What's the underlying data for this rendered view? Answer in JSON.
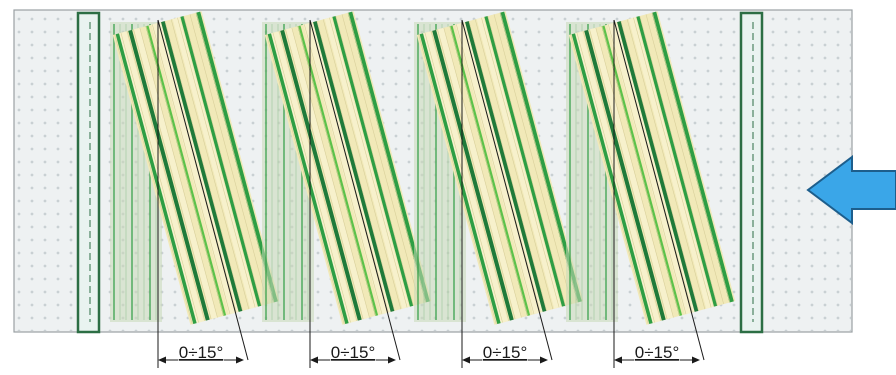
{
  "diagram": {
    "panel": {
      "fill": "#eef1f2",
      "border": "#9aa0a3",
      "dot_color": "#c9d0d3"
    },
    "batten_colors": {
      "fill": "#e9f3f0",
      "border": "#2c6e44"
    },
    "slat_colors": {
      "cream": "#f1e9b8",
      "cream_light": "#f7f1cc",
      "green_dark": "#1f7a3a",
      "green_mid": "#2e9e44",
      "green_light": "#5cc24a",
      "shadow": "#c9d9b8"
    },
    "arrow": {
      "name": "flow-direction-arrow-icon",
      "fill": "#3aa6e8",
      "stroke": "#1d5e8c"
    },
    "groups": [
      {
        "angle_label": "0÷15°"
      },
      {
        "angle_label": "0÷15°"
      },
      {
        "angle_label": "0÷15°"
      },
      {
        "angle_label": "0÷15°"
      }
    ]
  }
}
